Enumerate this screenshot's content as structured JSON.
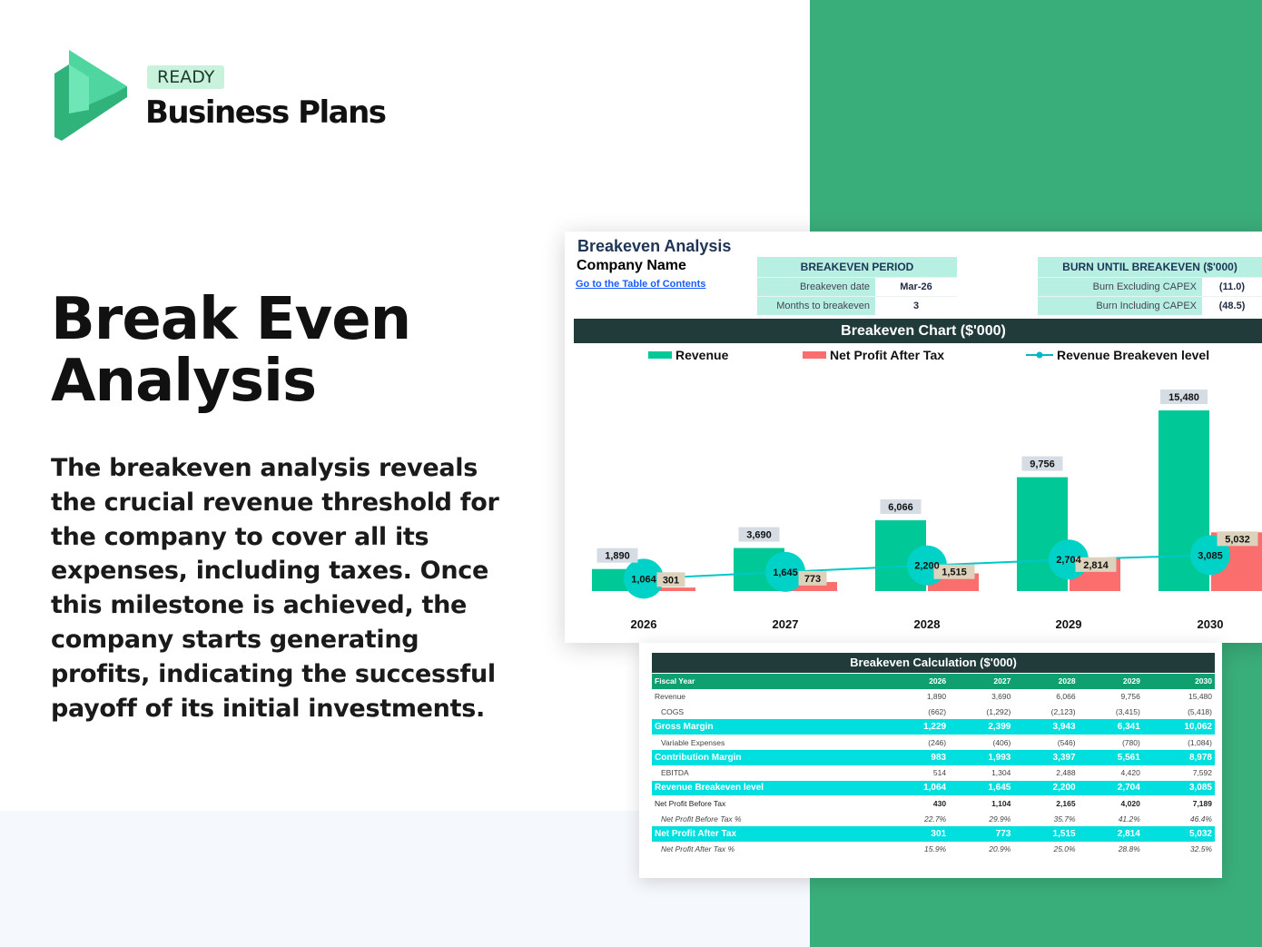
{
  "brand": {
    "badge": "READY",
    "name": "Business Plans"
  },
  "hero": {
    "title_line1": "Break Even",
    "title_line2": "Analysis",
    "description": "The breakeven analysis reveals the crucial revenue threshold for the company to cover all its expenses, including taxes. Once this milestone is achieved, the company starts generating profits, indicating the successful payoff of its initial investments."
  },
  "colors": {
    "green": "#3aae7a",
    "revenue": "#00c896",
    "net_profit": "#fa6e6e",
    "breakeven": "#00d2c8",
    "dark": "#213a3a"
  },
  "sheet": {
    "title": "Breakeven Analysis",
    "company": "Company Name",
    "link": "Go to the Table of Contents",
    "period": {
      "header": "BREAKEVEN PERIOD",
      "rows": [
        {
          "label": "Breakeven date",
          "value": "Mar-26"
        },
        {
          "label": "Months to breakeven",
          "value": "3"
        }
      ]
    },
    "burn": {
      "header": "BURN UNTIL BREAKEVEN ($'000)",
      "rows": [
        {
          "label": "Burn Excluding CAPEX",
          "value": "(11.0)"
        },
        {
          "label": "Burn Including CAPEX",
          "value": "(48.5)"
        }
      ]
    }
  },
  "chart_data": {
    "type": "bar",
    "title": "Breakeven Chart ($'000)",
    "legend_position": "top",
    "categories": [
      "2026",
      "2027",
      "2028",
      "2029",
      "2030"
    ],
    "series": [
      {
        "name": "Revenue",
        "type": "bar",
        "values": [
          1890,
          3690,
          6066,
          9756,
          15480
        ]
      },
      {
        "name": "Net Profit After Tax",
        "type": "bar",
        "values": [
          301,
          773,
          1515,
          2814,
          5032
        ]
      },
      {
        "name": "Revenue Breakeven level",
        "type": "line",
        "values": [
          1064,
          1645,
          2200,
          2704,
          3085
        ]
      }
    ],
    "labels": {
      "revenue": [
        "1,890",
        "3,690",
        "6,066",
        "9,756",
        "15,480"
      ],
      "net_profit": [
        "301",
        "773",
        "1,515",
        "2,814",
        "5,032"
      ],
      "breakeven": [
        "1,064",
        "1,645",
        "2,200",
        "2,704",
        "3,085"
      ]
    },
    "grid": false
  },
  "table": {
    "title": "Breakeven Calculation ($'000)",
    "header": [
      "Fiscal Year",
      "2026",
      "2027",
      "2028",
      "2029",
      "2030"
    ],
    "rows": [
      {
        "style": "",
        "cells": [
          "Revenue",
          "1,890",
          "3,690",
          "6,066",
          "9,756",
          "15,480"
        ]
      },
      {
        "style": "ind",
        "cells": [
          "COGS",
          "(662)",
          "(1,292)",
          "(2,123)",
          "(3,415)",
          "(5,418)"
        ]
      },
      {
        "style": "hl",
        "cells": [
          "Gross Margin",
          "1,229",
          "2,399",
          "3,943",
          "6,341",
          "10,062"
        ]
      },
      {
        "style": "ind",
        "cells": [
          "Variable Expenses",
          "(246)",
          "(406)",
          "(546)",
          "(780)",
          "(1,084)"
        ]
      },
      {
        "style": "hl",
        "cells": [
          "Contribution Margin",
          "983",
          "1,993",
          "3,397",
          "5,561",
          "8,978"
        ]
      },
      {
        "style": "ind",
        "cells": [
          "EBITDA",
          "514",
          "1,304",
          "2,488",
          "4,420",
          "7,592"
        ]
      },
      {
        "style": "hl",
        "cells": [
          "Revenue Breakeven level",
          "1,064",
          "1,645",
          "2,200",
          "2,704",
          "3,085"
        ]
      },
      {
        "style": "bold",
        "cells": [
          "Net Profit Before Tax",
          "430",
          "1,104",
          "2,165",
          "4,020",
          "7,189"
        ]
      },
      {
        "style": "ind it",
        "cells": [
          "Net Profit Before Tax %",
          "22.7%",
          "29.9%",
          "35.7%",
          "41.2%",
          "46.4%"
        ]
      },
      {
        "style": "hl",
        "cells": [
          "Net Profit After Tax",
          "301",
          "773",
          "1,515",
          "2,814",
          "5,032"
        ]
      },
      {
        "style": "ind it",
        "cells": [
          "Net Profit After Tax %",
          "15.9%",
          "20.9%",
          "25.0%",
          "28.8%",
          "32.5%"
        ]
      }
    ]
  }
}
